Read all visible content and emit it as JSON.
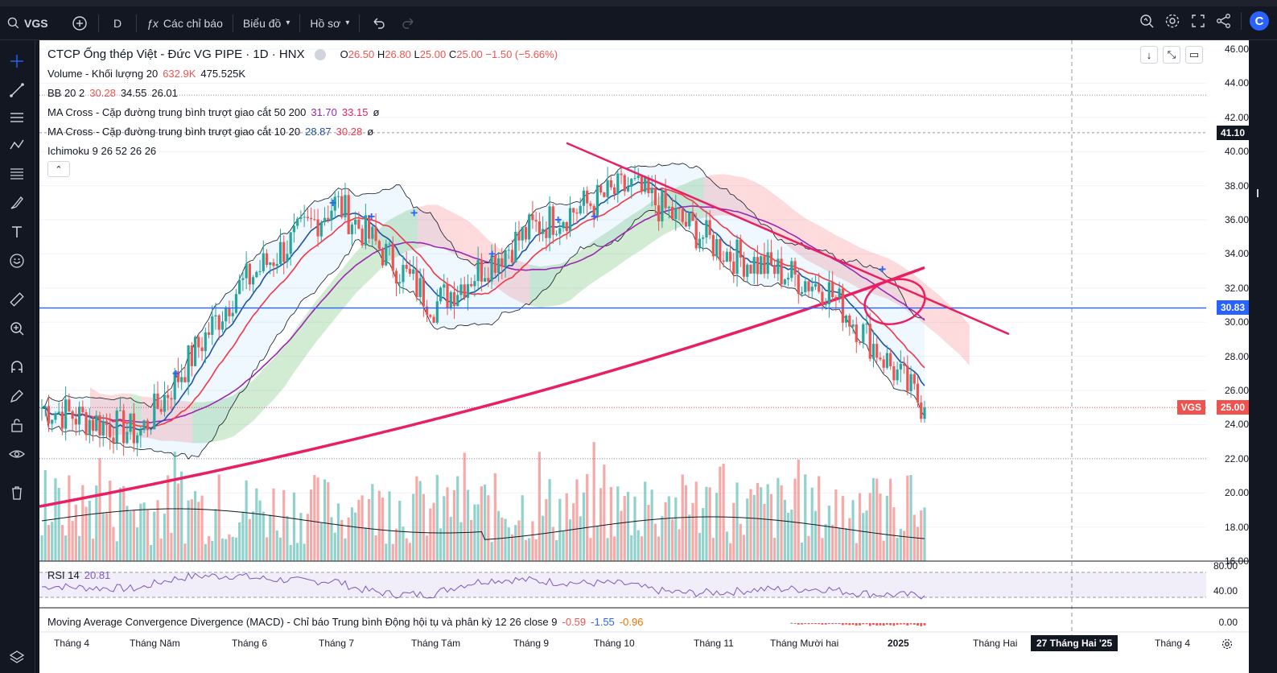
{
  "toolbar": {
    "symbol": "VGS",
    "interval": "D",
    "indicators_label": "Các chỉ báo",
    "chart_type_label": "Biểu đồ",
    "profile_label": "Hồ sơ"
  },
  "legend": {
    "title": "CTCP Ống thép Việt - Đức VG PIPE · 1D · HNX",
    "o_label": "O",
    "o_val": "26.50",
    "h_label": "H",
    "h_val": "26.80",
    "l_label": "L",
    "l_val": "25.00",
    "c_label": "C",
    "c_val": "25.00",
    "change": "−1.50 (−5.66%)",
    "volume_label": "Volume - Khối lượng 20",
    "volume_val1": "632.9K",
    "volume_val2": "475.525K",
    "bb_label": "BB 20 2",
    "bb_val1": "30.28",
    "bb_val2": "34.55",
    "bb_val3": "26.01",
    "ma1_label": "MA Cross - Cặp đường trung bình trượt giao cắt 50 200",
    "ma1_val1": "31.70",
    "ma1_val2": "33.15",
    "ma1_extra": "ø",
    "ma2_label": "MA Cross - Cặp đường trung bình trượt giao cắt 10 20",
    "ma2_val1": "28.87",
    "ma2_val2": "30.28",
    "ma2_extra": "ø",
    "ichimoku_label": "Ichimoku 9 26 52 26 26"
  },
  "price_axis": {
    "ticks": [
      "46.00",
      "44.00",
      "42.00",
      "40.00",
      "38.00",
      "36.00",
      "34.00",
      "32.00",
      "30.00",
      "28.00",
      "26.00",
      "24.00",
      "22.00",
      "20.00",
      "18.00",
      "16.00"
    ],
    "label_high": "41.10",
    "label_line": "30.83",
    "label_last_symbol": "VGS",
    "label_last": "25.00"
  },
  "rsi": {
    "label": "RSI 14",
    "value": "20.81",
    "ticks": [
      "80.00",
      "40.00"
    ]
  },
  "macd": {
    "label": "Moving Average Convergence Divergence (MACD) - Chỉ báo Trung bình Động hội tụ và phân kỳ 12 26 close 9",
    "v1": "-0.59",
    "v2": "-1.55",
    "v3": "-0.96",
    "tick": "0.00"
  },
  "time_axis": {
    "ticks": [
      "Tháng 4",
      "Tháng Năm",
      "Tháng 6",
      "Tháng 7",
      "Tháng Tám",
      "Tháng 9",
      "Tháng 10",
      "Tháng 11",
      "Tháng Mười hai",
      "2025",
      "Tháng Hai",
      "Tháng 4"
    ],
    "crosshair_label": "27 Tháng Hai '25"
  },
  "colors": {
    "up": "#26a69a",
    "down": "#ef5350",
    "ma_fast": "#1e53a5",
    "ma_slow": "#f23645",
    "ma50": "#9c27b0",
    "ma200": "#e91e63",
    "hline": "#2962ff",
    "trend": "#e91e63"
  },
  "chart_data": {
    "type": "candlestick",
    "x": [
      "Tháng 4",
      "Tháng Năm",
      "Tháng 6",
      "Tháng 7",
      "Tháng Tám",
      "Tháng 9",
      "Tháng 10",
      "Tháng 11",
      "Tháng Mười hai",
      "2025"
    ],
    "close": [
      25.0,
      23.5,
      32.0,
      37.0,
      31.0,
      35.5,
      38.0,
      34.0,
      32.0,
      25.0
    ],
    "ylim": [
      16,
      46
    ],
    "horizontal_line": 30.83,
    "last_close": 25.0,
    "high_marker": 41.1
  }
}
